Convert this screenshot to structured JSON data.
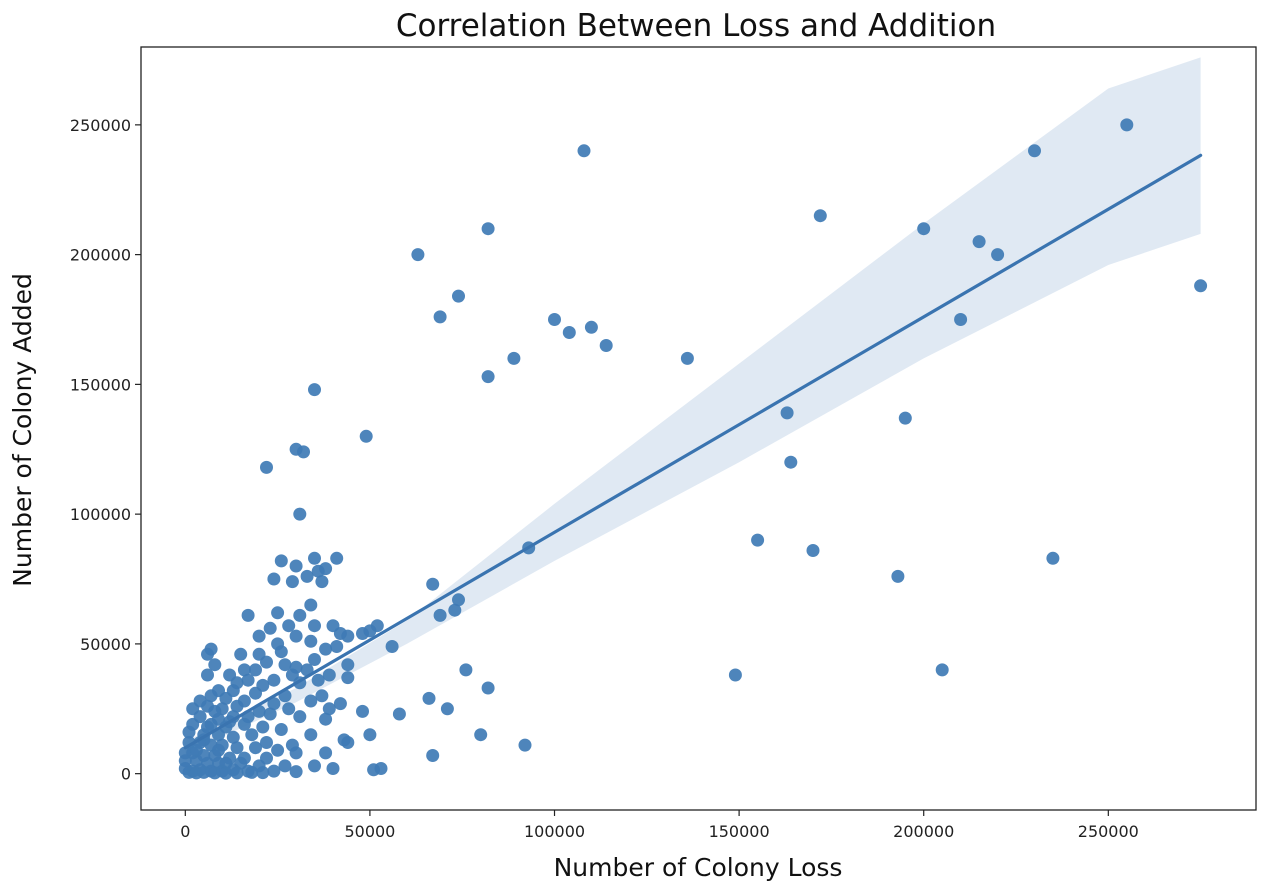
{
  "chart_data": {
    "type": "scatter",
    "title": "Correlation Between Loss and Addition",
    "xlabel": "Number of Colony Loss",
    "ylabel": "Number of Colony Added",
    "xlim": [
      -12000,
      290000
    ],
    "ylim": [
      -14000,
      280000
    ],
    "xticks": [
      0,
      50000,
      100000,
      150000,
      200000,
      250000
    ],
    "xtick_labels": [
      "0",
      "50000",
      "100000",
      "150000",
      "200000",
      "250000"
    ],
    "yticks": [
      0,
      50000,
      100000,
      150000,
      200000,
      250000
    ],
    "ytick_labels": [
      "0",
      "50000",
      "100000",
      "150000",
      "200000",
      "250000"
    ],
    "grid": false,
    "colors": {
      "points": "#3f7bb5",
      "line": "#3a74b0",
      "band": "#dde7f2",
      "axes": "#222222"
    },
    "regression": {
      "x_range": [
        0,
        275000
      ],
      "intercept": 10000,
      "slope": 0.83,
      "ci_upper": [
        [
          0,
          12500
        ],
        [
          30000,
          33000
        ],
        [
          60000,
          59000
        ],
        [
          100000,
          104000
        ],
        [
          150000,
          158000
        ],
        [
          200000,
          212000
        ],
        [
          250000,
          264000
        ],
        [
          275000,
          276000
        ]
      ],
      "ci_lower": [
        [
          0,
          7500
        ],
        [
          30000,
          27500
        ],
        [
          60000,
          50000
        ],
        [
          100000,
          82000
        ],
        [
          150000,
          120000
        ],
        [
          200000,
          160000
        ],
        [
          250000,
          196000
        ],
        [
          275000,
          208000
        ]
      ]
    },
    "points": [
      [
        255000,
        250000
      ],
      [
        230000,
        240000
      ],
      [
        108000,
        240000
      ],
      [
        172000,
        215000
      ],
      [
        82000,
        210000
      ],
      [
        200000,
        210000
      ],
      [
        215000,
        205000
      ],
      [
        63000,
        200000
      ],
      [
        220000,
        200000
      ],
      [
        275000,
        188000
      ],
      [
        74000,
        184000
      ],
      [
        69000,
        176000
      ],
      [
        100000,
        175000
      ],
      [
        210000,
        175000
      ],
      [
        110000,
        172000
      ],
      [
        104000,
        170000
      ],
      [
        114000,
        165000
      ],
      [
        89000,
        160000
      ],
      [
        136000,
        160000
      ],
      [
        82000,
        153000
      ],
      [
        35000,
        148000
      ],
      [
        163000,
        139000
      ],
      [
        195000,
        137000
      ],
      [
        49000,
        130000
      ],
      [
        30000,
        125000
      ],
      [
        32000,
        124000
      ],
      [
        164000,
        120000
      ],
      [
        22000,
        118000
      ],
      [
        31000,
        100000
      ],
      [
        155000,
        90000
      ],
      [
        93000,
        87000
      ],
      [
        170000,
        86000
      ],
      [
        235000,
        83000
      ],
      [
        35000,
        83000
      ],
      [
        41000,
        83000
      ],
      [
        26000,
        82000
      ],
      [
        30000,
        80000
      ],
      [
        38000,
        79000
      ],
      [
        36000,
        78000
      ],
      [
        193000,
        76000
      ],
      [
        29000,
        74000
      ],
      [
        24000,
        75000
      ],
      [
        33000,
        76000
      ],
      [
        37000,
        74000
      ],
      [
        67000,
        73000
      ],
      [
        74000,
        67000
      ],
      [
        34000,
        65000
      ],
      [
        73000,
        63000
      ],
      [
        69000,
        61000
      ],
      [
        31000,
        61000
      ],
      [
        17000,
        61000
      ],
      [
        25000,
        62000
      ],
      [
        28000,
        57000
      ],
      [
        35000,
        57000
      ],
      [
        40000,
        57000
      ],
      [
        52000,
        57000
      ],
      [
        23000,
        56000
      ],
      [
        48000,
        54000
      ],
      [
        50000,
        55000
      ],
      [
        42000,
        54000
      ],
      [
        44000,
        53000
      ],
      [
        30000,
        53000
      ],
      [
        20000,
        53000
      ],
      [
        25000,
        50000
      ],
      [
        34000,
        51000
      ],
      [
        56000,
        49000
      ],
      [
        7000,
        48000
      ],
      [
        38000,
        48000
      ],
      [
        41000,
        49000
      ],
      [
        6000,
        46000
      ],
      [
        20000,
        46000
      ],
      [
        15000,
        46000
      ],
      [
        26000,
        47000
      ],
      [
        35000,
        44000
      ],
      [
        8000,
        42000
      ],
      [
        44000,
        42000
      ],
      [
        16000,
        40000
      ],
      [
        19000,
        40000
      ],
      [
        22000,
        43000
      ],
      [
        27000,
        42000
      ],
      [
        30000,
        41000
      ],
      [
        76000,
        40000
      ],
      [
        205000,
        40000
      ],
      [
        149000,
        38000
      ],
      [
        6000,
        38000
      ],
      [
        12000,
        38000
      ],
      [
        29000,
        38000
      ],
      [
        33000,
        40000
      ],
      [
        39000,
        38000
      ],
      [
        17000,
        36000
      ],
      [
        24000,
        36000
      ],
      [
        44000,
        37000
      ],
      [
        14000,
        35000
      ],
      [
        21000,
        34000
      ],
      [
        31000,
        35000
      ],
      [
        36000,
        36000
      ],
      [
        82000,
        33000
      ],
      [
        9000,
        32000
      ],
      [
        13000,
        32000
      ],
      [
        19000,
        31000
      ],
      [
        27000,
        30000
      ],
      [
        37000,
        30000
      ],
      [
        66000,
        29000
      ],
      [
        4000,
        28000
      ],
      [
        7000,
        30000
      ],
      [
        11000,
        29000
      ],
      [
        16000,
        28000
      ],
      [
        24000,
        27000
      ],
      [
        34000,
        28000
      ],
      [
        42000,
        27000
      ],
      [
        2000,
        25000
      ],
      [
        6000,
        26000
      ],
      [
        10000,
        25000
      ],
      [
        14000,
        26000
      ],
      [
        20000,
        24000
      ],
      [
        28000,
        25000
      ],
      [
        39000,
        25000
      ],
      [
        48000,
        24000
      ],
      [
        71000,
        25000
      ],
      [
        58000,
        23000
      ],
      [
        4000,
        22000
      ],
      [
        9000,
        21000
      ],
      [
        13000,
        22000
      ],
      [
        17000,
        22000
      ],
      [
        23000,
        23000
      ],
      [
        31000,
        22000
      ],
      [
        38000,
        21000
      ],
      [
        2000,
        19000
      ],
      [
        7000,
        19000
      ],
      [
        11000,
        18000
      ],
      [
        16000,
        19000
      ],
      [
        21000,
        18000
      ],
      [
        26000,
        17000
      ],
      [
        34000,
        15000
      ],
      [
        43000,
        13000
      ],
      [
        50000,
        15000
      ],
      [
        80000,
        15000
      ],
      [
        1000,
        16000
      ],
      [
        5000,
        15000
      ],
      [
        9000,
        15000
      ],
      [
        13000,
        14000
      ],
      [
        18000,
        15000
      ],
      [
        22000,
        12000
      ],
      [
        29000,
        11000
      ],
      [
        1000,
        12000
      ],
      [
        4000,
        12000
      ],
      [
        7000,
        11000
      ],
      [
        10000,
        11000
      ],
      [
        14000,
        10000
      ],
      [
        19000,
        10000
      ],
      [
        25000,
        9000
      ],
      [
        30000,
        8000
      ],
      [
        38000,
        8000
      ],
      [
        44000,
        12000
      ],
      [
        92000,
        11000
      ],
      [
        0,
        8000
      ],
      [
        2000,
        8000
      ],
      [
        5000,
        7000
      ],
      [
        8000,
        7000
      ],
      [
        12000,
        6000
      ],
      [
        16000,
        6000
      ],
      [
        22000,
        6000
      ],
      [
        67000,
        7000
      ],
      [
        0,
        5000
      ],
      [
        3000,
        5000
      ],
      [
        6000,
        4000
      ],
      [
        9000,
        4000
      ],
      [
        11000,
        4000
      ],
      [
        15000,
        4000
      ],
      [
        20000,
        3000
      ],
      [
        27000,
        3000
      ],
      [
        35000,
        3000
      ],
      [
        40000,
        2000
      ],
      [
        51000,
        1500
      ],
      [
        53000,
        2000
      ],
      [
        0,
        2000
      ],
      [
        2000,
        1000
      ],
      [
        4000,
        1500
      ],
      [
        7000,
        1000
      ],
      [
        10000,
        1000
      ],
      [
        13000,
        1500
      ],
      [
        17000,
        1000
      ],
      [
        24000,
        1000
      ],
      [
        30000,
        800
      ],
      [
        1000,
        500
      ],
      [
        3000,
        300
      ],
      [
        5000,
        500
      ],
      [
        8000,
        300
      ],
      [
        11000,
        200
      ],
      [
        14000,
        300
      ],
      [
        18000,
        500
      ],
      [
        21000,
        400
      ],
      [
        6000,
        18000
      ],
      [
        8000,
        24000
      ],
      [
        12000,
        20000
      ],
      [
        3000,
        9000
      ],
      [
        5000,
        13000
      ],
      [
        9000,
        9000
      ]
    ]
  }
}
